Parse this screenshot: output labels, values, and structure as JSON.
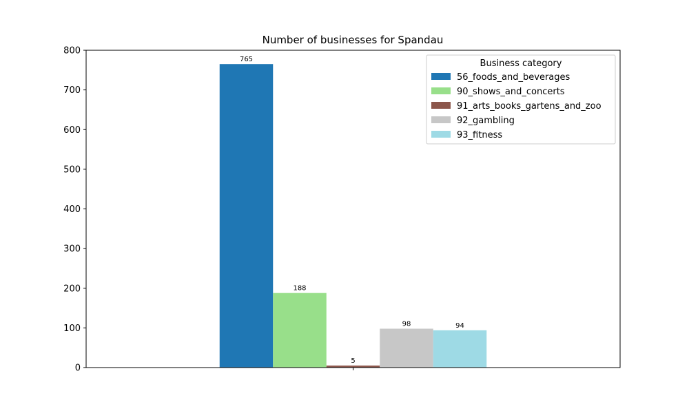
{
  "chart_data": {
    "type": "bar",
    "title": "Number of businesses for Spandau",
    "xlabel": "",
    "ylabel": "",
    "categories": [
      ""
    ],
    "ylim": [
      0,
      800
    ],
    "yticks": [
      0,
      100,
      200,
      300,
      400,
      500,
      600,
      700,
      800
    ],
    "grid": false,
    "legend": {
      "title": "Business category",
      "placement": "top-right"
    },
    "series": [
      {
        "name": "56_foods_and_beverages",
        "values": [
          765
        ],
        "color": "#1f77b4"
      },
      {
        "name": "90_shows_and_concerts",
        "values": [
          188
        ],
        "color": "#98df8a"
      },
      {
        "name": "91_arts_books_gartens_and_zoo",
        "values": [
          5
        ],
        "color": "#8c564b"
      },
      {
        "name": "92_gambling",
        "values": [
          98
        ],
        "color": "#c7c7c7"
      },
      {
        "name": "93_fitness",
        "values": [
          94
        ],
        "color": "#9edae5"
      }
    ]
  }
}
